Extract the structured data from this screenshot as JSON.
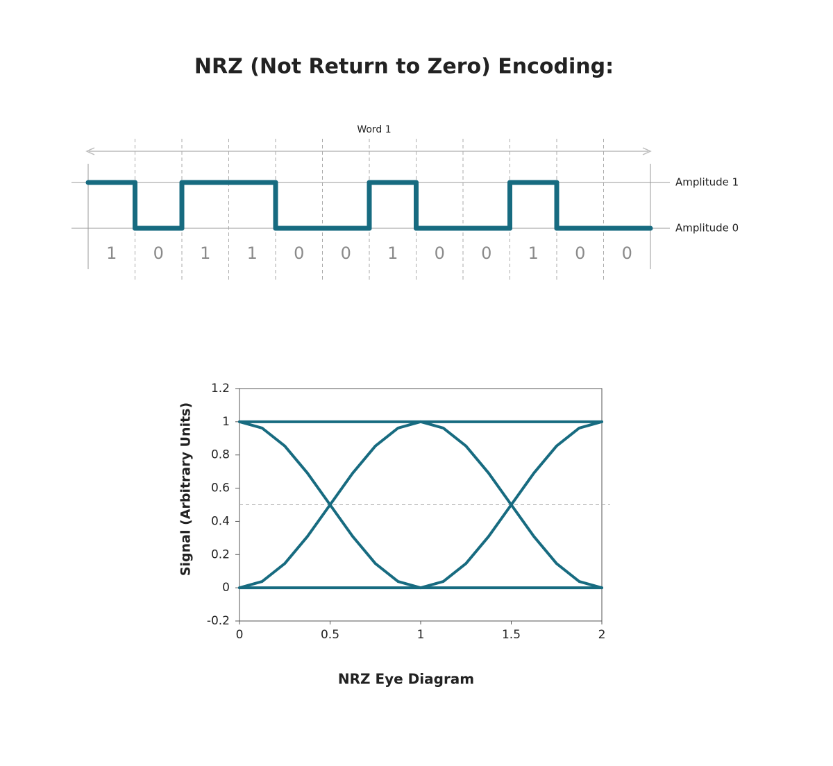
{
  "title": "NRZ (Not Return to Zero) Encoding:",
  "chart_data": [
    {
      "type": "step",
      "label": "Word 1",
      "values": [
        1,
        0,
        1,
        1,
        0,
        0,
        1,
        0,
        0,
        1,
        0,
        0
      ],
      "ylim": [
        0,
        1
      ],
      "yticks": [
        {
          "value": 1,
          "label": "Amplitude 1"
        },
        {
          "value": 0,
          "label": "Amplitude 0"
        }
      ],
      "color": "#176b80"
    },
    {
      "type": "line",
      "xlabel": "NRZ Eye Diagram",
      "ylabel": "Signal (Arbitrary Units)",
      "x": [
        0,
        0.125,
        0.25,
        0.375,
        0.5,
        0.625,
        0.75,
        0.875,
        1,
        1.125,
        1.25,
        1.375,
        1.5,
        1.625,
        1.75,
        1.875,
        2
      ],
      "series": [
        {
          "color": "#176b80",
          "values": [
            1,
            1,
            1,
            1,
            1,
            1,
            1,
            1,
            1,
            1,
            1,
            1,
            1,
            1,
            1,
            1,
            1
          ]
        },
        {
          "color": "#176b80",
          "values": [
            0,
            0,
            0,
            0,
            0,
            0,
            0,
            0,
            0,
            0,
            0,
            0,
            0,
            0,
            0,
            0,
            0
          ]
        },
        {
          "color": "#176b80",
          "values": [
            1,
            0.962,
            0.854,
            0.691,
            0.5,
            0.309,
            0.146,
            0.038,
            0,
            0.038,
            0.146,
            0.309,
            0.5,
            0.691,
            0.854,
            0.962,
            1
          ]
        },
        {
          "color": "#176b80",
          "values": [
            0,
            0.038,
            0.146,
            0.309,
            0.5,
            0.691,
            0.854,
            0.962,
            1,
            0.962,
            0.854,
            0.691,
            0.5,
            0.309,
            0.146,
            0.038,
            0
          ]
        }
      ],
      "hline": 0.5,
      "xlim": [
        0,
        2
      ],
      "ylim": [
        -0.2,
        1.2
      ],
      "xticks": [
        0,
        0.5,
        1,
        1.5,
        2
      ],
      "yticks": [
        1.2,
        1,
        0.8,
        0.6,
        0.4,
        0.2,
        0,
        -0.2
      ]
    }
  ]
}
